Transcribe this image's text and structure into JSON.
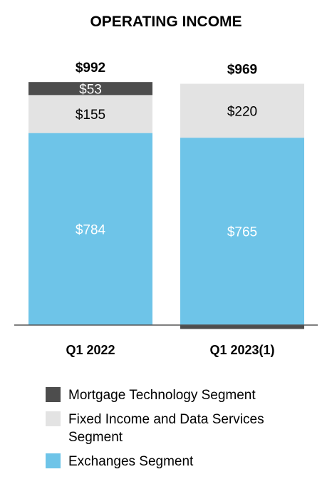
{
  "chart_data": {
    "type": "bar",
    "stacked": true,
    "title": "OPERATING INCOME",
    "categories": [
      "Q1 2022",
      "Q1 2023(1)"
    ],
    "totals": [
      "$992",
      "$969"
    ],
    "series": [
      {
        "name": "Exchanges Segment",
        "values": [
          784,
          765
        ],
        "labels": [
          "$784",
          "$765"
        ],
        "color": "#6ec4e8",
        "label_color": "#ffffff"
      },
      {
        "name": "Fixed Income and Data Services Segment",
        "values": [
          155,
          220
        ],
        "labels": [
          "$155",
          "$220"
        ],
        "color": "#e3e3e3",
        "label_color": "#000000"
      },
      {
        "name": "Mortgage Technology Segment",
        "values": [
          53,
          -16
        ],
        "labels": [
          "$53",
          ""
        ],
        "color": "#4d4d4d",
        "label_color": "#ffffff"
      }
    ],
    "legend_order": [
      2,
      1,
      0
    ],
    "legend_placement": "bottom",
    "grid": false
  }
}
